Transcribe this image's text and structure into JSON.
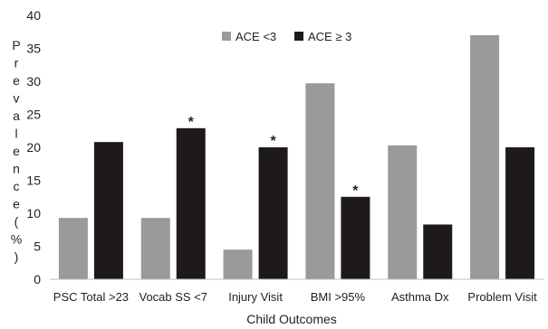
{
  "chart_data": {
    "type": "bar",
    "title": "",
    "xlabel": "Child Outcomes",
    "ylabel_letters": [
      "P",
      "r",
      "e",
      "v",
      "a",
      "l",
      "e",
      "n",
      "c",
      "e",
      "(",
      "%",
      ")"
    ],
    "categories": [
      "PSC Total >23",
      "Vocab SS <7",
      "Injury Visit",
      "BMI >95%",
      "Asthma Dx",
      "Problem Visit"
    ],
    "series": [
      {
        "name": "ACE <3",
        "color": "#9a9a9a",
        "values": [
          9.3,
          9.3,
          4.5,
          29.7,
          20.3,
          37.0
        ]
      },
      {
        "name": "ACE ≥ 3",
        "color": "#1f1a1a",
        "values": [
          20.8,
          22.9,
          20.0,
          12.5,
          8.3,
          20.0
        ]
      }
    ],
    "annotations": [
      {
        "category_index": 1,
        "series_index": 1,
        "text": "*"
      },
      {
        "category_index": 2,
        "series_index": 1,
        "text": "*"
      },
      {
        "category_index": 3,
        "series_index": 1,
        "text": "*"
      }
    ],
    "ylim": [
      0,
      40
    ],
    "yticks": [
      0,
      5,
      10,
      15,
      20,
      25,
      30,
      35,
      40
    ],
    "grid": false,
    "legend_position": "top-right"
  }
}
